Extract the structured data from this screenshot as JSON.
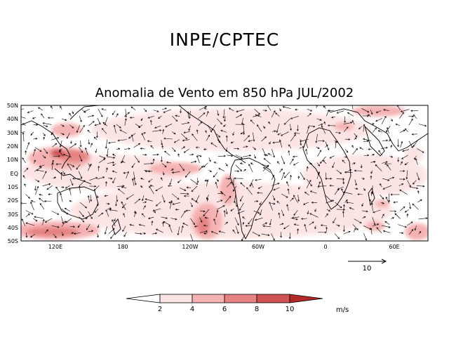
{
  "header": {
    "institution": "INPE/CPTEC"
  },
  "map": {
    "title": "Anomalia de Vento em 850 hPa JUL/2002",
    "variable": "wind anomaly",
    "level": "850 hPa",
    "period": "JUL/2002",
    "lat_labels": [
      "50N",
      "40N",
      "30N",
      "20N",
      "10N",
      "EQ",
      "10S",
      "20S",
      "30S",
      "40S",
      "50S"
    ],
    "lon_labels": [
      "120E",
      "180",
      "120W",
      "60W",
      "0",
      "60E"
    ],
    "reference_vector": {
      "value": "10"
    }
  },
  "colorbar": {
    "labels": [
      "2",
      "4",
      "6",
      "8",
      "10"
    ],
    "units": "m/s",
    "colors": [
      "#ffffff",
      "#fde4e4",
      "#f5b2b2",
      "#e58383",
      "#cf5151",
      "#b52828"
    ]
  },
  "colors": {
    "shade_light": "#fde4e4",
    "shade_mid": "#f5b2b2",
    "shade_dark": "#e58383",
    "shade_max": "#cf5151"
  }
}
